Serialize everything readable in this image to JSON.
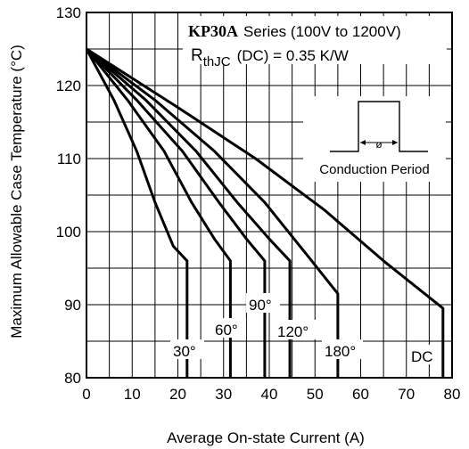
{
  "chart_data": {
    "type": "line",
    "title_part": "KP30A",
    "title_rest": "Series (100V to 1200V)",
    "rth_main": "R",
    "rth_sub": "thJC",
    "rth_rest": "(DC) = 0.35 K/W",
    "xlabel": "Average On-state Current (A)",
    "ylabel": "Maximum Allowable Case Temperature (°C)",
    "xlim": [
      0,
      80
    ],
    "ylim": [
      80,
      130
    ],
    "xticks": [
      0,
      10,
      20,
      30,
      40,
      50,
      60,
      70,
      80
    ],
    "yticks": [
      80,
      90,
      100,
      110,
      120,
      130
    ],
    "grid": true,
    "inset_label": "Conduction Period",
    "inset_symbol": "ø",
    "series": [
      {
        "name": "30°",
        "x": [
          0,
          6,
          11,
          15,
          19,
          22,
          22
        ],
        "y": [
          125,
          118,
          111,
          104,
          98,
          96,
          80
        ]
      },
      {
        "name": "60°",
        "x": [
          0,
          9,
          17,
          23,
          28,
          31.5,
          31.5
        ],
        "y": [
          125,
          118,
          111,
          104,
          99,
          96,
          80
        ]
      },
      {
        "name": "90°",
        "x": [
          0,
          11,
          21,
          29,
          35,
          39,
          39
        ],
        "y": [
          125,
          118,
          111,
          104,
          99,
          96,
          80
        ]
      },
      {
        "name": "120°",
        "x": [
          0,
          13,
          24,
          33,
          40,
          44.5,
          44.5
        ],
        "y": [
          125,
          118,
          111,
          104,
          99,
          96,
          80
        ]
      },
      {
        "name": "180°",
        "x": [
          0,
          15,
          28,
          39,
          48,
          55,
          55
        ],
        "y": [
          125,
          118,
          111,
          104,
          97,
          91.5,
          80
        ]
      },
      {
        "name": "DC",
        "x": [
          0,
          20,
          37,
          52,
          65,
          78,
          78
        ],
        "y": [
          125,
          117,
          110,
          103,
          96,
          89.5,
          80
        ]
      }
    ]
  }
}
